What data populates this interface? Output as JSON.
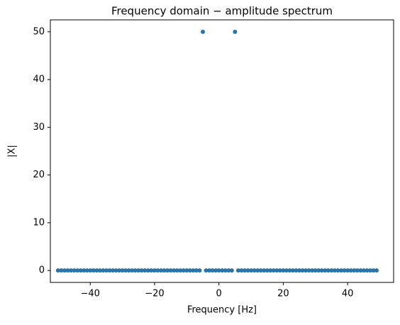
{
  "chart_data": {
    "type": "scatter",
    "title": "Frequency domain − amplitude spectrum",
    "xlabel": "Frequency [Hz]",
    "ylabel": "|X|",
    "x": [
      -50,
      -49,
      -48,
      -47,
      -46,
      -45,
      -44,
      -43,
      -42,
      -41,
      -40,
      -39,
      -38,
      -37,
      -36,
      -35,
      -34,
      -33,
      -32,
      -31,
      -30,
      -29,
      -28,
      -27,
      -26,
      -25,
      -24,
      -23,
      -22,
      -21,
      -20,
      -19,
      -18,
      -17,
      -16,
      -15,
      -14,
      -13,
      -12,
      -11,
      -10,
      -9,
      -8,
      -7,
      -6,
      -5,
      -4,
      -3,
      -2,
      -1,
      0,
      1,
      2,
      3,
      4,
      5,
      6,
      7,
      8,
      9,
      10,
      11,
      12,
      13,
      14,
      15,
      16,
      17,
      18,
      19,
      20,
      21,
      22,
      23,
      24,
      25,
      26,
      27,
      28,
      29,
      30,
      31,
      32,
      33,
      34,
      35,
      36,
      37,
      38,
      39,
      40,
      41,
      42,
      43,
      44,
      45,
      46,
      47,
      48,
      49
    ],
    "values": [
      0,
      0,
      0,
      0,
      0,
      0,
      0,
      0,
      0,
      0,
      0,
      0,
      0,
      0,
      0,
      0,
      0,
      0,
      0,
      0,
      0,
      0,
      0,
      0,
      0,
      0,
      0,
      0,
      0,
      0,
      0,
      0,
      0,
      0,
      0,
      0,
      0,
      0,
      0,
      0,
      0,
      0,
      0,
      0,
      0,
      50,
      0,
      0,
      0,
      0,
      0,
      0,
      0,
      0,
      0,
      50,
      0,
      0,
      0,
      0,
      0,
      0,
      0,
      0,
      0,
      0,
      0,
      0,
      0,
      0,
      0,
      0,
      0,
      0,
      0,
      0,
      0,
      0,
      0,
      0,
      0,
      0,
      0,
      0,
      0,
      0,
      0,
      0,
      0,
      0,
      0,
      0,
      0,
      0,
      0,
      0,
      0,
      0,
      0,
      0
    ],
    "color": "#1f77b4",
    "xlim": [
      -52.4,
      54.3
    ],
    "ylim": [
      -2.5,
      52.5
    ],
    "xticks": [
      {
        "value": -40,
        "label": "−40"
      },
      {
        "value": -20,
        "label": "−20"
      },
      0,
      20,
      40
    ],
    "yticks": [
      0,
      10,
      20,
      30,
      40,
      50
    ]
  }
}
